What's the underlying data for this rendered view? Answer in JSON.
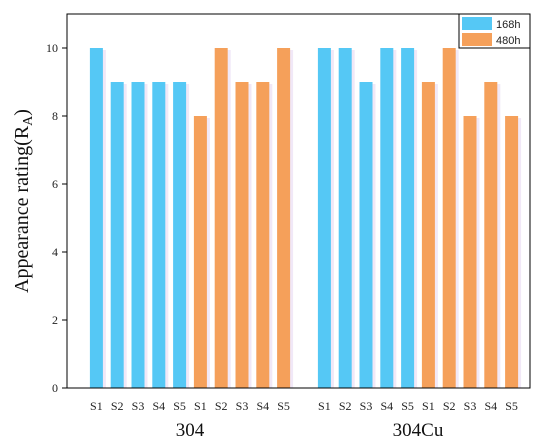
{
  "chart_data": {
    "type": "bar",
    "ylabel": "Appearance rating(R",
    "ylabel_sub": "A",
    "ylabel_close": ")",
    "ylim": [
      0,
      11
    ],
    "yticks": [
      0,
      2,
      4,
      6,
      8,
      10
    ],
    "grid": false,
    "legend_position": "top-right",
    "groups": [
      {
        "name": "304",
        "series": [
          {
            "name": "168h",
            "categories": [
              "S1",
              "S2",
              "S3",
              "S4",
              "S5"
            ],
            "values": [
              10,
              9,
              9,
              9,
              9
            ]
          },
          {
            "name": "480h",
            "categories": [
              "S1",
              "S2",
              "S3",
              "S4",
              "S5"
            ],
            "values": [
              8,
              10,
              9,
              9,
              10
            ]
          }
        ]
      },
      {
        "name": "304Cu",
        "series": [
          {
            "name": "168h",
            "categories": [
              "S1",
              "S2",
              "S3",
              "S4",
              "S5"
            ],
            "values": [
              10,
              10,
              9,
              10,
              10
            ]
          },
          {
            "name": "480h",
            "categories": [
              "S1",
              "S2",
              "S3",
              "S4",
              "S5"
            ],
            "values": [
              9,
              10,
              8,
              9,
              8
            ]
          }
        ]
      }
    ],
    "legend": [
      {
        "label": "168h",
        "color": "#55c8f5"
      },
      {
        "label": "480h",
        "color": "#f5a05a"
      }
    ],
    "colors": {
      "168h": "#55c8f5",
      "480h": "#f5a05a"
    }
  }
}
